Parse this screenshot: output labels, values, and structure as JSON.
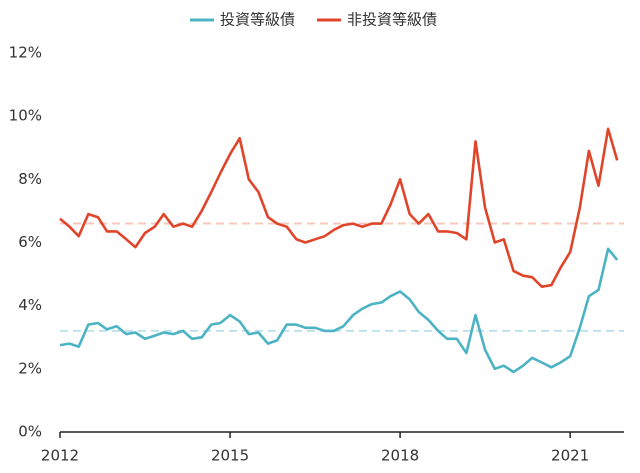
{
  "chart_data": {
    "type": "line",
    "x": [
      2012,
      2012.17,
      2012.33,
      2012.5,
      2012.67,
      2012.83,
      2013,
      2013.17,
      2013.33,
      2013.5,
      2013.67,
      2013.83,
      2014,
      2014.17,
      2014.33,
      2014.5,
      2014.67,
      2014.83,
      2015,
      2015.17,
      2015.33,
      2015.5,
      2015.67,
      2015.83,
      2016,
      2016.17,
      2016.33,
      2016.5,
      2016.67,
      2016.83,
      2017,
      2017.17,
      2017.33,
      2017.5,
      2017.67,
      2017.83,
      2018,
      2018.17,
      2018.33,
      2018.5,
      2018.67,
      2018.83,
      2019,
      2019.17,
      2019.33,
      2019.5,
      2019.67,
      2019.83,
      2020,
      2020.17,
      2020.33,
      2020.5,
      2020.67,
      2020.83,
      2021,
      2021.17,
      2021.33,
      2021.5,
      2021.67,
      2021.83
    ],
    "series": [
      {
        "name": "投資等級債",
        "color": "#4bb3c4",
        "values": [
          2.75,
          2.8,
          2.7,
          3.4,
          3.45,
          3.25,
          3.35,
          3.1,
          3.15,
          2.95,
          3.05,
          3.15,
          3.1,
          3.2,
          2.95,
          3.0,
          3.4,
          3.45,
          3.7,
          3.5,
          3.1,
          3.15,
          2.8,
          2.9,
          3.4,
          3.4,
          3.3,
          3.3,
          3.2,
          3.2,
          3.35,
          3.7,
          3.9,
          4.05,
          4.1,
          4.3,
          4.45,
          4.2,
          3.8,
          3.55,
          3.2,
          2.95,
          2.95,
          2.5,
          3.7,
          2.6,
          2.0,
          2.1,
          1.9,
          2.1,
          2.35,
          2.2,
          2.05,
          2.2,
          2.4,
          3.3,
          4.3,
          4.5,
          5.8,
          5.45
        ]
      },
      {
        "name": "非投資等級債",
        "color": "#e0452a",
        "values": [
          6.75,
          6.5,
          6.2,
          6.9,
          6.8,
          6.35,
          6.35,
          6.1,
          5.85,
          6.3,
          6.5,
          6.9,
          6.5,
          6.6,
          6.5,
          7.0,
          7.6,
          8.2,
          8.8,
          9.3,
          8.0,
          7.6,
          6.8,
          6.6,
          6.5,
          6.1,
          6.0,
          6.1,
          6.2,
          6.4,
          6.55,
          6.6,
          6.5,
          6.6,
          6.6,
          7.2,
          8.0,
          6.9,
          6.6,
          6.9,
          6.35,
          6.35,
          6.3,
          6.1,
          9.2,
          7.1,
          6.0,
          6.1,
          5.1,
          4.95,
          4.9,
          4.6,
          4.65,
          5.2,
          5.7,
          7.1,
          8.9,
          7.8,
          9.6,
          8.6
        ]
      }
    ],
    "reference_lines": [
      {
        "value": 6.6,
        "color": "#f7c8bd"
      },
      {
        "value": 3.2,
        "color": "#bfe2e8"
      }
    ],
    "xlim": [
      2012,
      2021.95
    ],
    "xticks": [
      2012,
      2015,
      2018,
      2021
    ],
    "ylim": [
      0,
      12
    ],
    "yticks": [
      {
        "value": 0,
        "label": "0%"
      },
      {
        "value": 2,
        "label": "2%"
      },
      {
        "value": 4,
        "label": "4%"
      },
      {
        "value": 6,
        "label": "6%"
      },
      {
        "value": 8,
        "label": "8%"
      },
      {
        "value": 10,
        "label": "10%"
      },
      {
        "value": 12,
        "label": "12%"
      }
    ],
    "legend": "top"
  }
}
